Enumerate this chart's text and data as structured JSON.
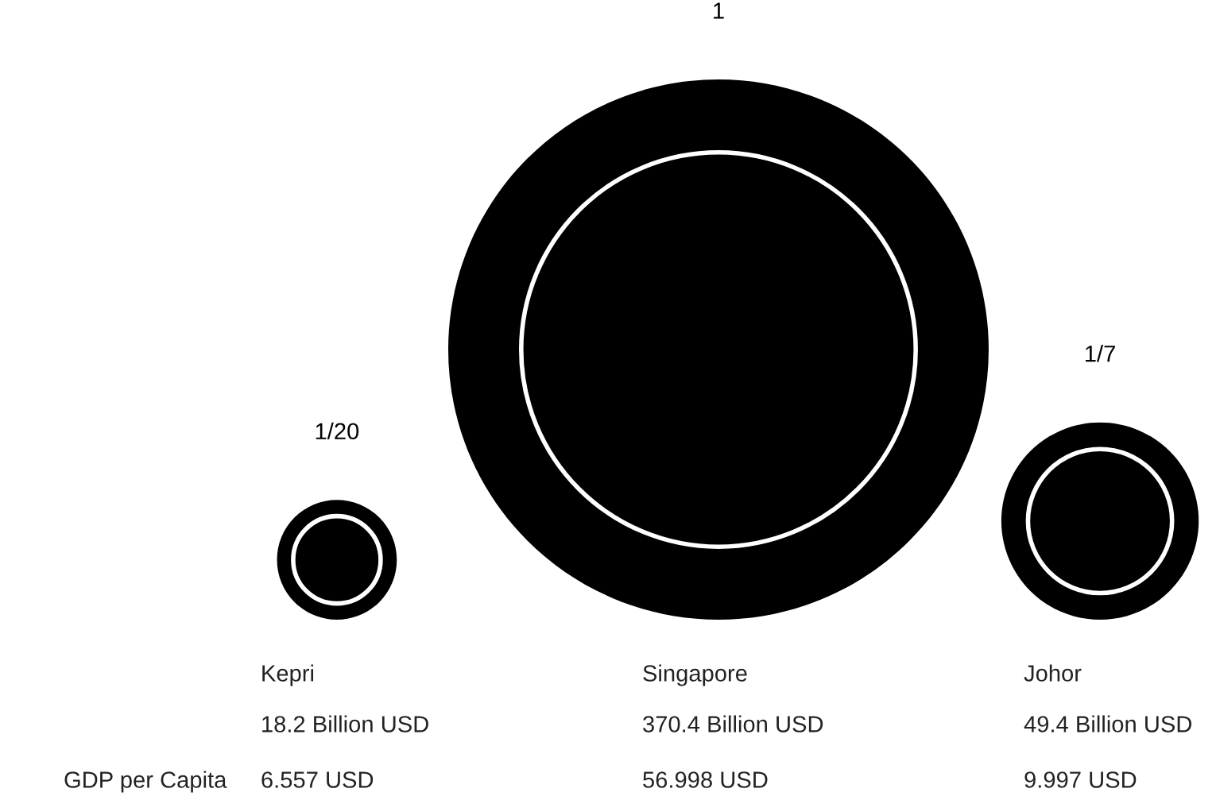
{
  "chart_data": {
    "type": "other",
    "categories": [
      "Kepri",
      "Singapore",
      "Johor"
    ],
    "series": [
      {
        "color": "#000000",
        "values": [
          18.2,
          370.4,
          49.4
        ],
        "value_labels": [
          "18.2 Billion USD",
          "370.4 Billion USD",
          "49.4 Billion USD"
        ]
      },
      {
        "name": "GDP per Capita",
        "values": [
          6.557,
          56.998,
          9.997
        ],
        "value_labels": [
          "6.557 USD",
          "56.998 USD",
          "9.997 USD"
        ]
      }
    ],
    "annotations": [
      {
        "text": "1/20",
        "x": "Kepri"
      },
      {
        "text": "1",
        "x": "Singapore"
      },
      {
        "text": "1/7",
        "x": "Johor"
      }
    ]
  }
}
